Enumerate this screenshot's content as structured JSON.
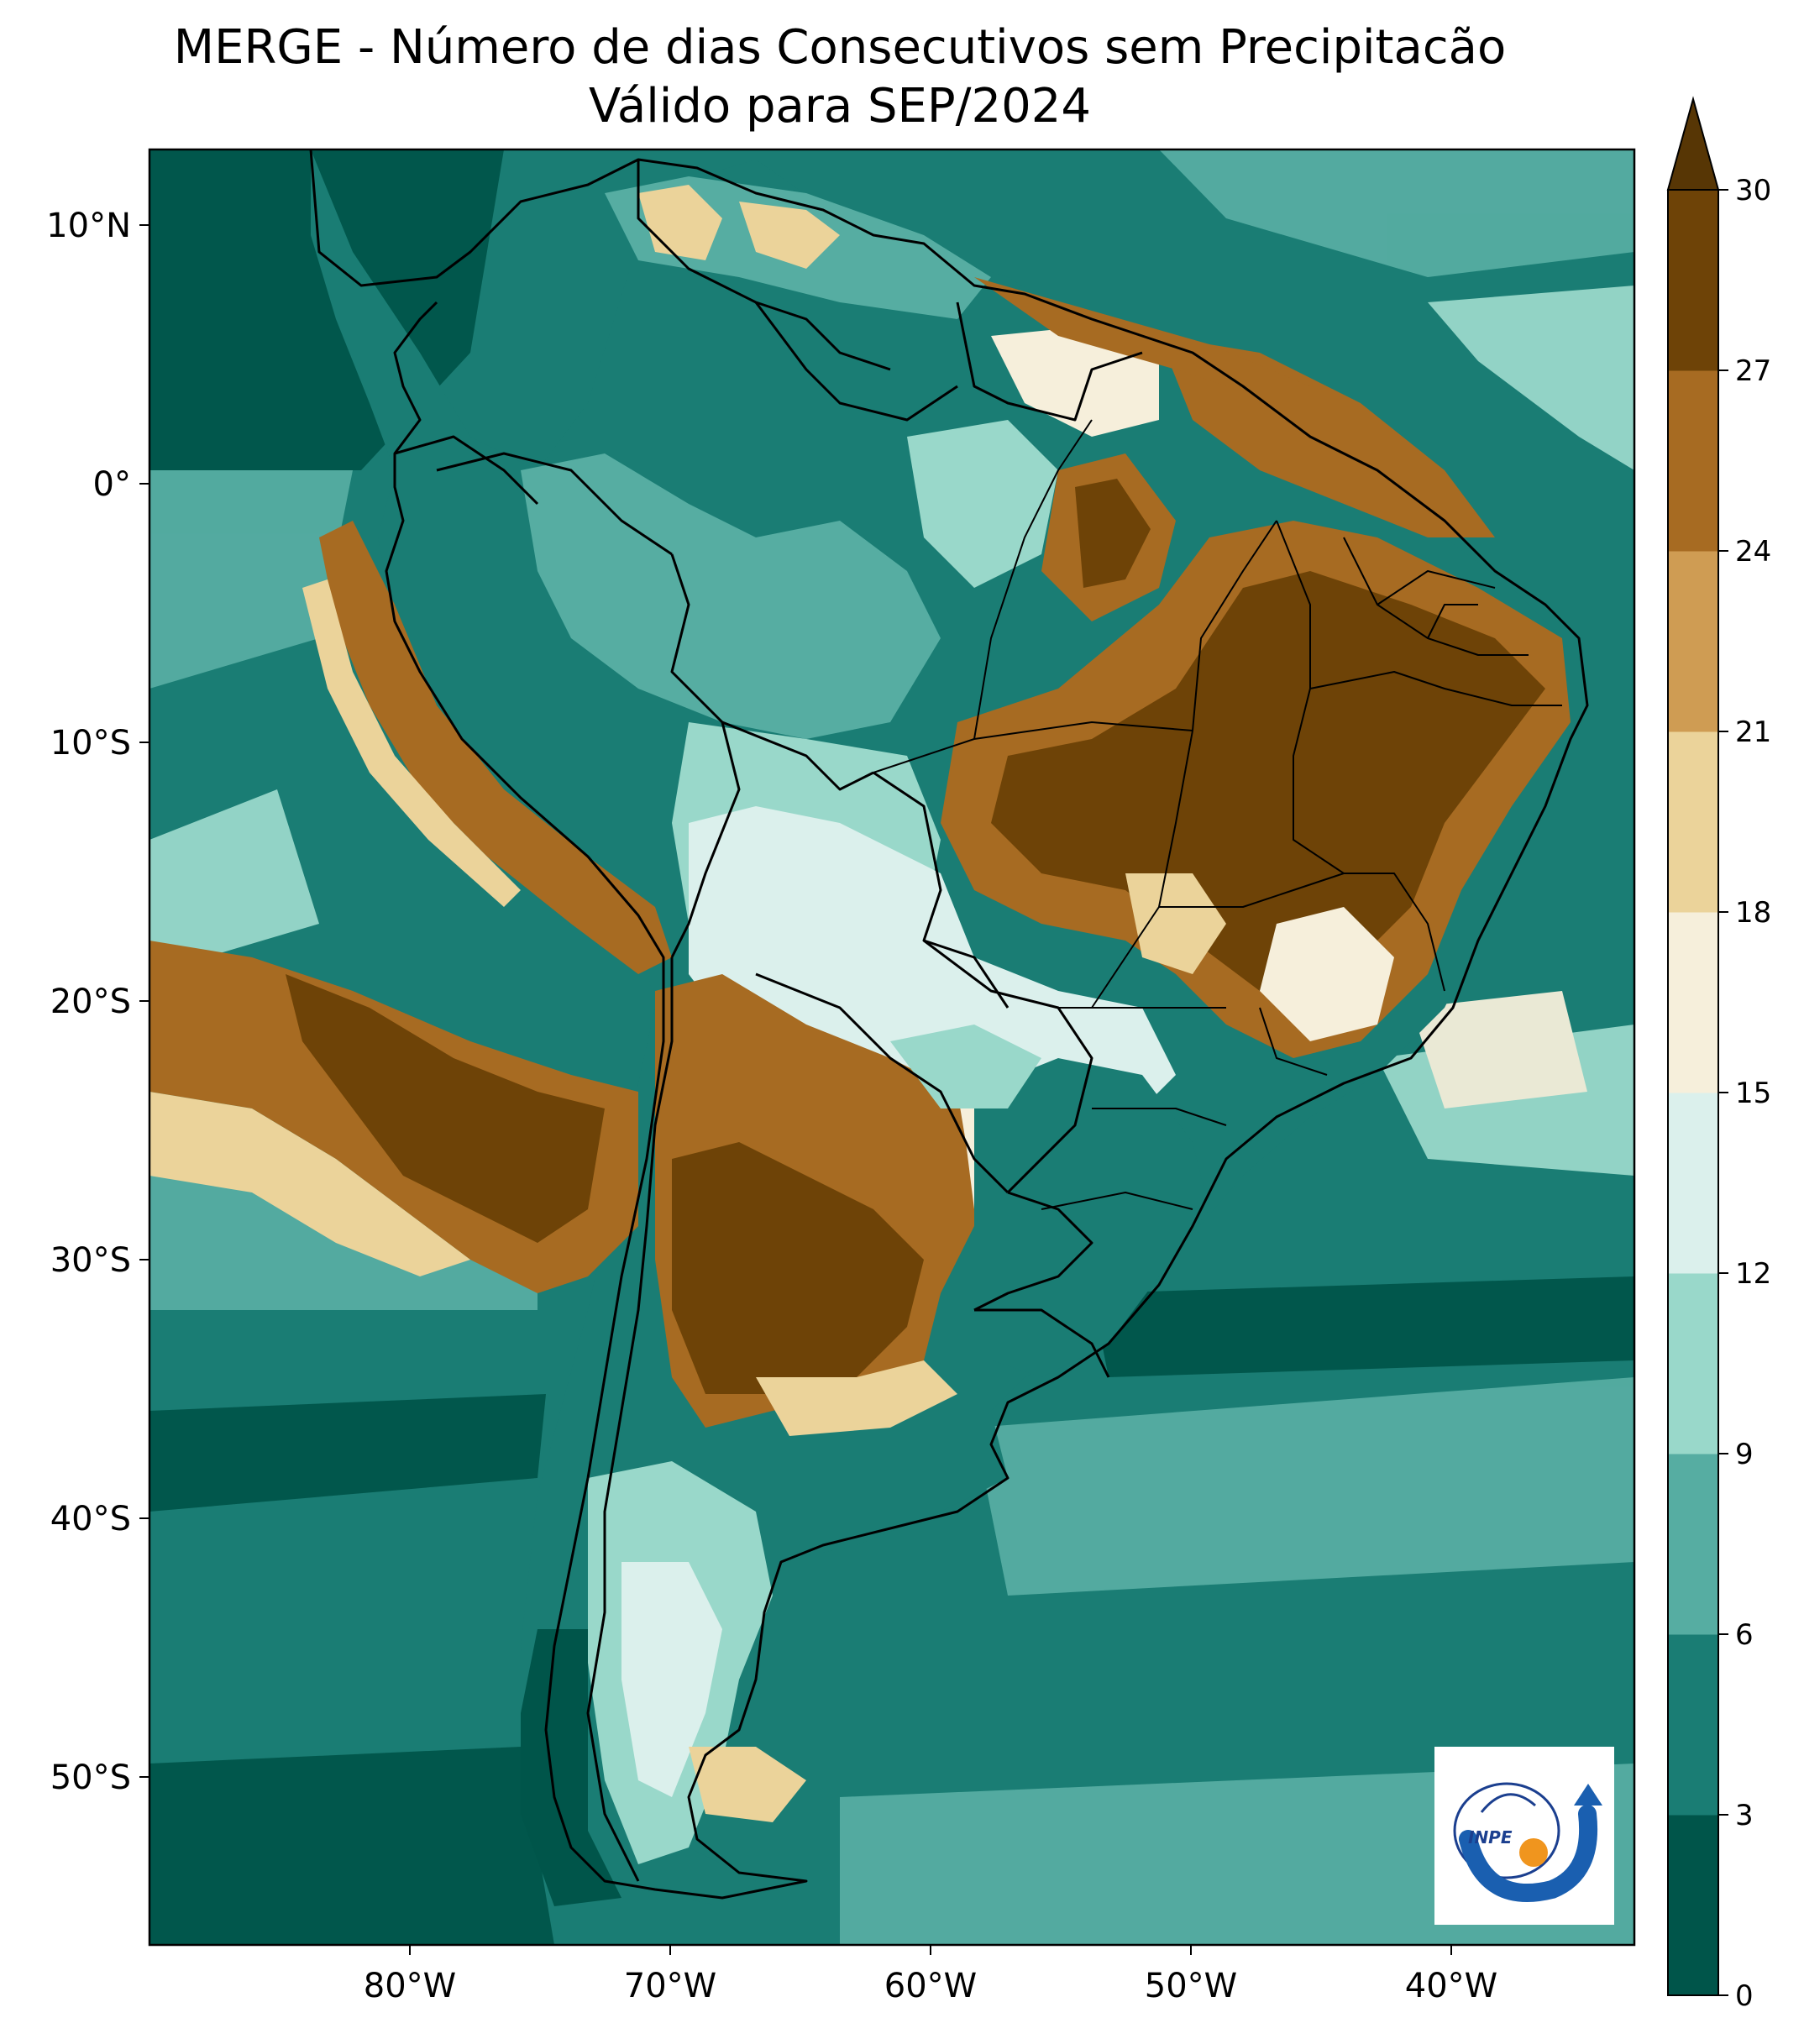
{
  "title": {
    "line1": "MERGE - Número de dias Consecutivos sem Precipitacão",
    "line2": "Válido para SEP/2024"
  },
  "axes": {
    "lat_ticks": [
      "10°N",
      "0°",
      "10°S",
      "20°S",
      "30°S",
      "40°S",
      "50°S"
    ],
    "lon_ticks": [
      "80°W",
      "70°W",
      "60°W",
      "50°W",
      "40°W"
    ]
  },
  "colorbar": {
    "levels": [
      "0",
      "3",
      "6",
      "9",
      "12",
      "15",
      "18",
      "21",
      "24",
      "27",
      "30"
    ],
    "colors": [
      "#00554a",
      "#1a7d74",
      "#56ada2",
      "#99d8ca",
      "#dbf0ec",
      "#f6efdb",
      "#ebd39a",
      "#cf9c53",
      "#a76b22",
      "#6e4307"
    ],
    "extend": "max",
    "extend_color": "#573605"
  },
  "logo": {
    "text": "INPE",
    "icon": "inpe-logo-icon",
    "colors": {
      "blue": "#1a5fb0",
      "orange": "#f0951e",
      "dark": "#1b3f8f"
    }
  },
  "chart_data": {
    "type": "heatmap",
    "variable": "Número de dias Consecutivos sem Precipitacão",
    "lon_range": [
      -90,
      -33
    ],
    "lat_range": [
      -56,
      13
    ],
    "value_range": [
      0,
      30
    ]
  }
}
